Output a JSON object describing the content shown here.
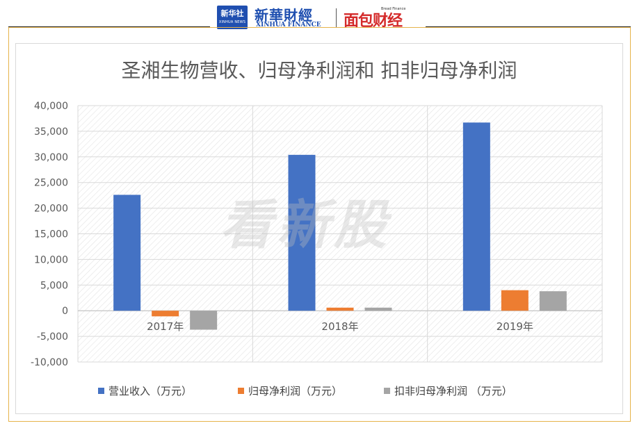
{
  "header": {
    "logo_box_cn": "新华社",
    "logo_box_en": "XINHUA NEWS",
    "brand_cn": "新華財經",
    "brand_en": "XINHUA FINANCE",
    "partner_small": "Bread Finance",
    "partner_cn": "面包财经"
  },
  "watermark": "看新股",
  "chart_data": {
    "type": "bar",
    "title": "圣湘生物营收、归母净利润和 扣非归母净利润",
    "categories": [
      "2017年",
      "2018年",
      "2019年"
    ],
    "series": [
      {
        "name": "营业收入（万元）",
        "color": "#4472C4",
        "values": [
          22600,
          30400,
          36700
        ]
      },
      {
        "name": "归母净利润（万元）",
        "color": "#ED7D31",
        "values": [
          -1100,
          600,
          4000
        ]
      },
      {
        "name": "扣非归母净利润 （万元）",
        "color": "#A5A5A5",
        "values": [
          -3700,
          600,
          3800
        ]
      }
    ],
    "ylim": [
      -10000,
      40000
    ],
    "yticks": [
      -10000,
      -5000,
      0,
      5000,
      10000,
      15000,
      20000,
      25000,
      30000,
      35000,
      40000
    ],
    "ytick_labels": [
      "-10,000",
      "-5,000",
      "0",
      "5,000",
      "10,000",
      "15,000",
      "20,000",
      "25,000",
      "30,000",
      "35,000",
      "40,000"
    ],
    "grid": true,
    "legend_position": "bottom"
  }
}
